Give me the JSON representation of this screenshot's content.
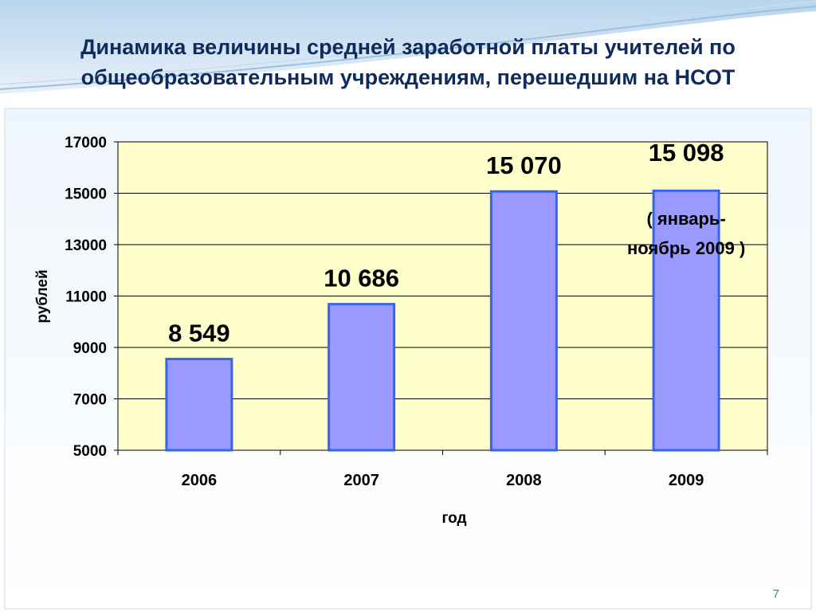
{
  "slide": {
    "title_line1": "Динамика величины средней заработной платы учителей по",
    "title_line2": "общеобразовательным учреждениям, перешедшим на НСОТ",
    "page_number": "7"
  },
  "chart_data": {
    "type": "bar",
    "categories": [
      "2006",
      "2007",
      "2008",
      "2009"
    ],
    "values": [
      8549,
      10686,
      15070,
      15098
    ],
    "data_labels": [
      "8 549",
      "10 686",
      "15 070",
      "15 098"
    ],
    "annotation_lines": [
      "( январь-",
      "ноябрь 2009 )"
    ],
    "xlabel": "год",
    "ylabel": "рублей",
    "ylim": [
      5000,
      17000
    ],
    "yticks": [
      5000,
      7000,
      9000,
      11000,
      13000,
      15000,
      17000
    ],
    "grid": true,
    "legend": "none",
    "colors": {
      "plot_bg": "#ffffcc",
      "bar_fill": "#9999ff",
      "bar_edge": "#3366ee",
      "title": "#0f2b5c",
      "text": "#000000"
    }
  }
}
